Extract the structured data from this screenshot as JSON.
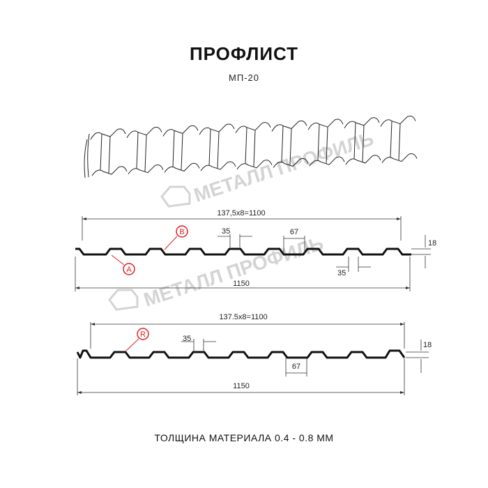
{
  "title": "ПРОФЛИСТ",
  "subtitle": "МП-20",
  "watermark": "МЕТАЛЛ ПРОФИЛЬ",
  "footer": "ТОЛЩИНА МАТЕРИАЛА 0.4 - 0.8 ММ",
  "accent_color": "#e02020",
  "profile1": {
    "pitch_label": "137,5x8=1100",
    "width_label": "1150",
    "crest_label": "35",
    "valley_label": "35",
    "rib_label": "67",
    "height_label": "18",
    "marker_a": "A",
    "marker_b": "B"
  },
  "profile2": {
    "pitch_label": "137.5x8=1100",
    "width_label": "1150",
    "crest_label": "35",
    "rib_label": "67",
    "height_label": "18",
    "marker_r": "R"
  }
}
